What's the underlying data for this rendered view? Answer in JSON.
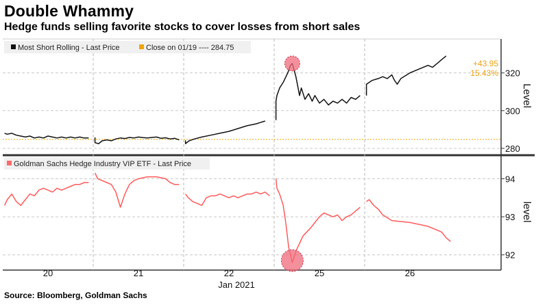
{
  "title": "Double Whammy",
  "subtitle": "Hedge funds selling favorite stocks to cover losses from short sales",
  "source": "Source: Bloomberg, Goldman Sachs",
  "colors": {
    "top_line": "#111111",
    "reference": "#f0a500",
    "bottom_line": "#ff5a5a",
    "highlight": "#f06b7a"
  },
  "chart_data": [
    {
      "type": "line",
      "panel": "top",
      "legend": [
        {
          "label": "Most Short Rolling - Last Price"
        },
        {
          "label": "Close on 01/19 ---- 284.75"
        }
      ],
      "ylabel": "Level",
      "ylim": [
        276,
        338
      ],
      "yticks": [
        "280",
        "300",
        "320"
      ],
      "reference_value": 284.75,
      "annotation": {
        "change": "+43.95",
        "percent": "15.43%"
      },
      "x": [
        0,
        0.05,
        0.1,
        0.15,
        0.2,
        0.25,
        0.3,
        0.35,
        0.4,
        0.45,
        0.5,
        0.55,
        0.6,
        0.65,
        0.7,
        0.75,
        0.8,
        0.85,
        0.9,
        0.95,
        1,
        1.02,
        1.06,
        1.1,
        1.15,
        1.2,
        1.25,
        1.3,
        1.35,
        1.4,
        1.45,
        1.5,
        1.55,
        1.6,
        1.65,
        1.7,
        1.75,
        1.8,
        1.85,
        1.9,
        1.95,
        2,
        2.02,
        2.06,
        2.12,
        2.2,
        2.3,
        2.4,
        2.5,
        2.6,
        2.7,
        2.8,
        2.9,
        3,
        3,
        3.03,
        3.06,
        3.1,
        3.15,
        3.18,
        3.2,
        3.24,
        3.28,
        3.3,
        3.34,
        3.38,
        3.42,
        3.45,
        3.5,
        3.55,
        3.6,
        3.65,
        3.7,
        3.75,
        3.8,
        3.85,
        3.9,
        3.95,
        4,
        4.02,
        4.08,
        4.15,
        4.2,
        4.25,
        4.3,
        4.33,
        4.36,
        4.4,
        4.5,
        4.6,
        4.7,
        4.75,
        4.8,
        4.85,
        4.9,
        5
      ],
      "series": [
        {
          "name": "Most Short Rolling - Last Price",
          "values": [
            288,
            287.5,
            288,
            287,
            286.5,
            286,
            286.5,
            285.5,
            286,
            285.5,
            286.5,
            286,
            285.5,
            286,
            285.5,
            286,
            285.5,
            286,
            285.5,
            285.5,
            285.8,
            283,
            282.5,
            284,
            284.5,
            284,
            285,
            285.5,
            285.2,
            285.8,
            285.5,
            286,
            285.7,
            285.5,
            285.8,
            286,
            285.3,
            285.6,
            285,
            285.3,
            284.5,
            284.2,
            282.5,
            284,
            285,
            286,
            287,
            288,
            289,
            290.5,
            292,
            293,
            294.5,
            295,
            305,
            308,
            312,
            315,
            320,
            324,
            325,
            318,
            308,
            312,
            306,
            309,
            305,
            308,
            304,
            306,
            303,
            305,
            304,
            306,
            304,
            307,
            306,
            308,
            308,
            314,
            316,
            317,
            318,
            317,
            319,
            316,
            314,
            317,
            320,
            322,
            324,
            323,
            325,
            327,
            329,
            330
          ]
        }
      ]
    },
    {
      "type": "line",
      "panel": "bottom",
      "legend": [
        {
          "label": "Goldman Sachs Hedge Industry VIP ETF - Last Price"
        }
      ],
      "ylabel": "level",
      "ylim": [
        91.6,
        94.6
      ],
      "yticks": [
        "92",
        "93",
        "94"
      ],
      "x": [
        0,
        0.05,
        0.1,
        0.15,
        0.2,
        0.25,
        0.3,
        0.35,
        0.4,
        0.45,
        0.5,
        0.55,
        0.6,
        0.65,
        0.7,
        0.75,
        0.8,
        0.85,
        0.9,
        0.95,
        1,
        1.05,
        1.1,
        1.15,
        1.2,
        1.25,
        1.3,
        1.35,
        1.4,
        1.45,
        1.5,
        1.6,
        1.7,
        1.8,
        1.85,
        1.9,
        1.95,
        2,
        2.05,
        2.1,
        2.15,
        2.2,
        2.25,
        2.3,
        2.35,
        2.4,
        2.45,
        2.5,
        2.55,
        2.6,
        2.65,
        2.7,
        2.75,
        2.8,
        2.85,
        2.9,
        2.95,
        3,
        3.03,
        3.06,
        3.1,
        3.13,
        3.16,
        3.2,
        3.24,
        3.28,
        3.32,
        3.36,
        3.4,
        3.45,
        3.5,
        3.55,
        3.6,
        3.65,
        3.7,
        3.75,
        3.8,
        3.85,
        3.9,
        3.95,
        4,
        4.05,
        4.1,
        4.15,
        4.2,
        4.3,
        4.5,
        4.7,
        4.85,
        4.9,
        4.95,
        5
      ],
      "series": [
        {
          "name": "Goldman Sachs Hedge Industry VIP ETF - Last Price",
          "values": [
            93.3,
            93.45,
            93.6,
            93.4,
            93.3,
            93.45,
            93.6,
            93.55,
            93.7,
            93.75,
            93.7,
            93.65,
            93.75,
            93.7,
            93.75,
            93.8,
            93.85,
            93.85,
            93.9,
            93.9,
            94.15,
            94.0,
            93.95,
            93.9,
            93.85,
            93.65,
            93.25,
            93.6,
            93.85,
            93.95,
            94.0,
            94.05,
            94.05,
            94.0,
            93.9,
            93.85,
            93.85,
            93.6,
            93.5,
            93.4,
            93.35,
            93.3,
            93.5,
            93.55,
            93.55,
            93.6,
            93.55,
            93.5,
            93.55,
            93.5,
            93.55,
            93.6,
            93.6,
            93.65,
            93.6,
            93.65,
            93.55,
            94.0,
            93.75,
            93.6,
            93.3,
            92.8,
            92.2,
            91.8,
            92.1,
            92.3,
            92.5,
            92.6,
            92.7,
            92.85,
            93.0,
            93.1,
            93.05,
            93.0,
            93.05,
            92.9,
            93.0,
            93.05,
            93.15,
            93.25,
            93.4,
            93.45,
            93.3,
            93.2,
            93.05,
            92.9,
            92.85,
            92.75,
            92.6,
            92.45,
            92.35,
            92.3
          ]
        }
      ]
    }
  ],
  "xaxis": {
    "ticks": [
      {
        "pos": 0.5,
        "label": "20"
      },
      {
        "pos": 1.5,
        "label": "21"
      },
      {
        "pos": 2.5,
        "label": "22"
      },
      {
        "pos": 3.5,
        "label": "25"
      },
      {
        "pos": 4.5,
        "label": "26"
      }
    ],
    "month_label": "Jan 2021"
  },
  "highlights": [
    {
      "panel": "top",
      "x": 3.2,
      "y": 325
    },
    {
      "panel": "bottom",
      "x": 3.2,
      "y": 91.85
    }
  ]
}
